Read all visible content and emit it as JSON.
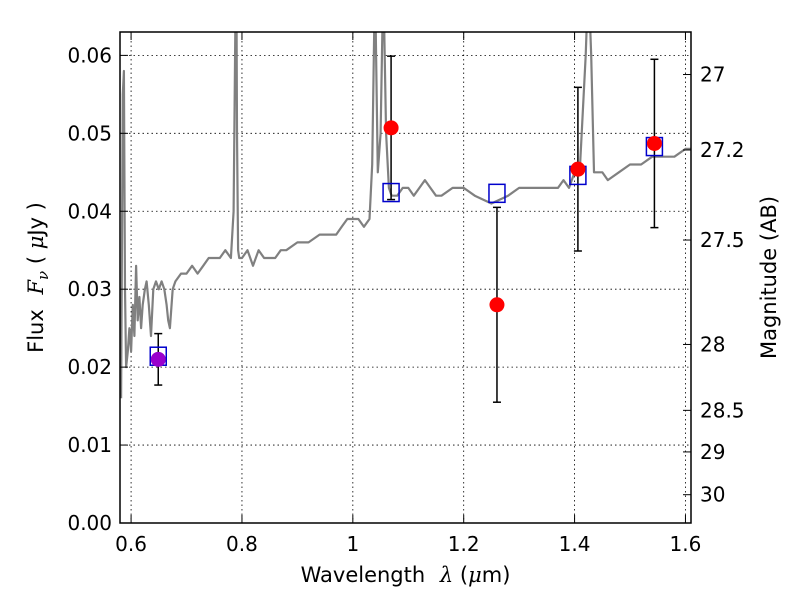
{
  "chart_data": {
    "type": "scatter",
    "title": "",
    "xlabel": {
      "prefix": "Wavelength",
      "symbol": "λ",
      "unit_open": " (",
      "unit_mu": "μ",
      "unit_close": "m)"
    },
    "ylabel": {
      "prefix": "Flux",
      "symbol": "F",
      "subscript": "ν",
      "unit_open": " ( ",
      "unit_mu": "μ",
      "unit_close": "Jy )"
    },
    "y2label": "Magnitude (AB)",
    "xlim": [
      0.58,
      1.61
    ],
    "ylim": [
      0.0,
      0.063
    ],
    "grid": true,
    "x_ticks": [
      0.6,
      0.8,
      1.0,
      1.2,
      1.4,
      1.6
    ],
    "x_tick_labels": [
      "0.6",
      "0.8",
      "1",
      "1.2",
      "1.4",
      "1.6"
    ],
    "y_ticks": [
      0.0,
      0.01,
      0.02,
      0.03,
      0.04,
      0.05,
      0.06
    ],
    "y_tick_labels": [
      "0.00",
      "0.01",
      "0.02",
      "0.03",
      "0.04",
      "0.05",
      "0.06"
    ],
    "y2_ticks": [
      27,
      27.2,
      27.5,
      28,
      28.5,
      29,
      30
    ],
    "y2_tick_labels": [
      "27",
      "27.2",
      "27.5",
      "28",
      "28.5",
      "29",
      "30"
    ],
    "colors": {
      "spectrum": "#808080",
      "observed": "#ff0000",
      "observed_optical": "#9900cc",
      "model": "#0000cc",
      "errorbar": "#000000"
    },
    "spectrum": {
      "x": [
        0.582,
        0.585,
        0.587,
        0.589,
        0.591,
        0.594,
        0.597,
        0.6,
        0.603,
        0.606,
        0.609,
        0.612,
        0.615,
        0.618,
        0.621,
        0.625,
        0.628,
        0.632,
        0.636,
        0.64,
        0.645,
        0.65,
        0.655,
        0.66,
        0.664,
        0.667,
        0.67,
        0.675,
        0.68,
        0.69,
        0.7,
        0.71,
        0.72,
        0.73,
        0.74,
        0.75,
        0.76,
        0.77,
        0.78,
        0.785,
        0.788,
        0.79,
        0.791,
        0.793,
        0.795,
        0.8,
        0.81,
        0.82,
        0.83,
        0.84,
        0.85,
        0.86,
        0.87,
        0.88,
        0.9,
        0.92,
        0.94,
        0.96,
        0.97,
        0.98,
        0.99,
        1.0,
        1.01,
        1.02,
        1.03,
        1.035,
        1.04,
        1.042,
        1.045,
        1.05,
        1.055,
        1.06,
        1.065,
        1.07,
        1.075,
        1.08,
        1.09,
        1.1,
        1.11,
        1.12,
        1.13,
        1.14,
        1.15,
        1.16,
        1.18,
        1.2,
        1.22,
        1.25,
        1.28,
        1.3,
        1.32,
        1.35,
        1.37,
        1.38,
        1.39,
        1.4,
        1.41,
        1.42,
        1.425,
        1.43,
        1.435,
        1.44,
        1.45,
        1.46,
        1.48,
        1.5,
        1.52,
        1.54,
        1.56,
        1.58,
        1.6,
        1.61
      ],
      "y": [
        0.016,
        0.055,
        0.058,
        0.03,
        0.02,
        0.022,
        0.025,
        0.022,
        0.028,
        0.024,
        0.033,
        0.026,
        0.029,
        0.025,
        0.028,
        0.03,
        0.031,
        0.028,
        0.024,
        0.03,
        0.031,
        0.03,
        0.031,
        0.03,
        0.028,
        0.026,
        0.025,
        0.03,
        0.031,
        0.032,
        0.032,
        0.033,
        0.032,
        0.033,
        0.034,
        0.034,
        0.034,
        0.035,
        0.034,
        0.04,
        0.063,
        0.07,
        0.05,
        0.035,
        0.034,
        0.034,
        0.035,
        0.033,
        0.035,
        0.034,
        0.034,
        0.034,
        0.035,
        0.035,
        0.036,
        0.036,
        0.037,
        0.037,
        0.037,
        0.038,
        0.039,
        0.039,
        0.039,
        0.038,
        0.039,
        0.046,
        0.07,
        0.06,
        0.045,
        0.05,
        0.07,
        0.05,
        0.043,
        0.042,
        0.042,
        0.042,
        0.043,
        0.043,
        0.042,
        0.043,
        0.044,
        0.043,
        0.042,
        0.042,
        0.043,
        0.043,
        0.042,
        0.041,
        0.042,
        0.043,
        0.043,
        0.043,
        0.043,
        0.044,
        0.043,
        0.045,
        0.046,
        0.06,
        0.07,
        0.06,
        0.045,
        0.045,
        0.045,
        0.044,
        0.045,
        0.046,
        0.046,
        0.047,
        0.047,
        0.047,
        0.048,
        0.048
      ]
    },
    "observed": [
      {
        "x": 0.649,
        "y": 0.021,
        "err": 0.0033,
        "color_key": "observed_optical"
      },
      {
        "x": 1.069,
        "y": 0.0507,
        "err": 0.0092
      },
      {
        "x": 1.26,
        "y": 0.028,
        "err": 0.0125
      },
      {
        "x": 1.406,
        "y": 0.0454,
        "err": 0.0105
      },
      {
        "x": 1.544,
        "y": 0.0487,
        "err": 0.0108
      }
    ],
    "model": [
      {
        "x": 0.649,
        "y": 0.0214
      },
      {
        "x": 1.069,
        "y": 0.0424
      },
      {
        "x": 1.26,
        "y": 0.0423
      },
      {
        "x": 1.406,
        "y": 0.0446
      },
      {
        "x": 1.544,
        "y": 0.0483
      }
    ]
  }
}
